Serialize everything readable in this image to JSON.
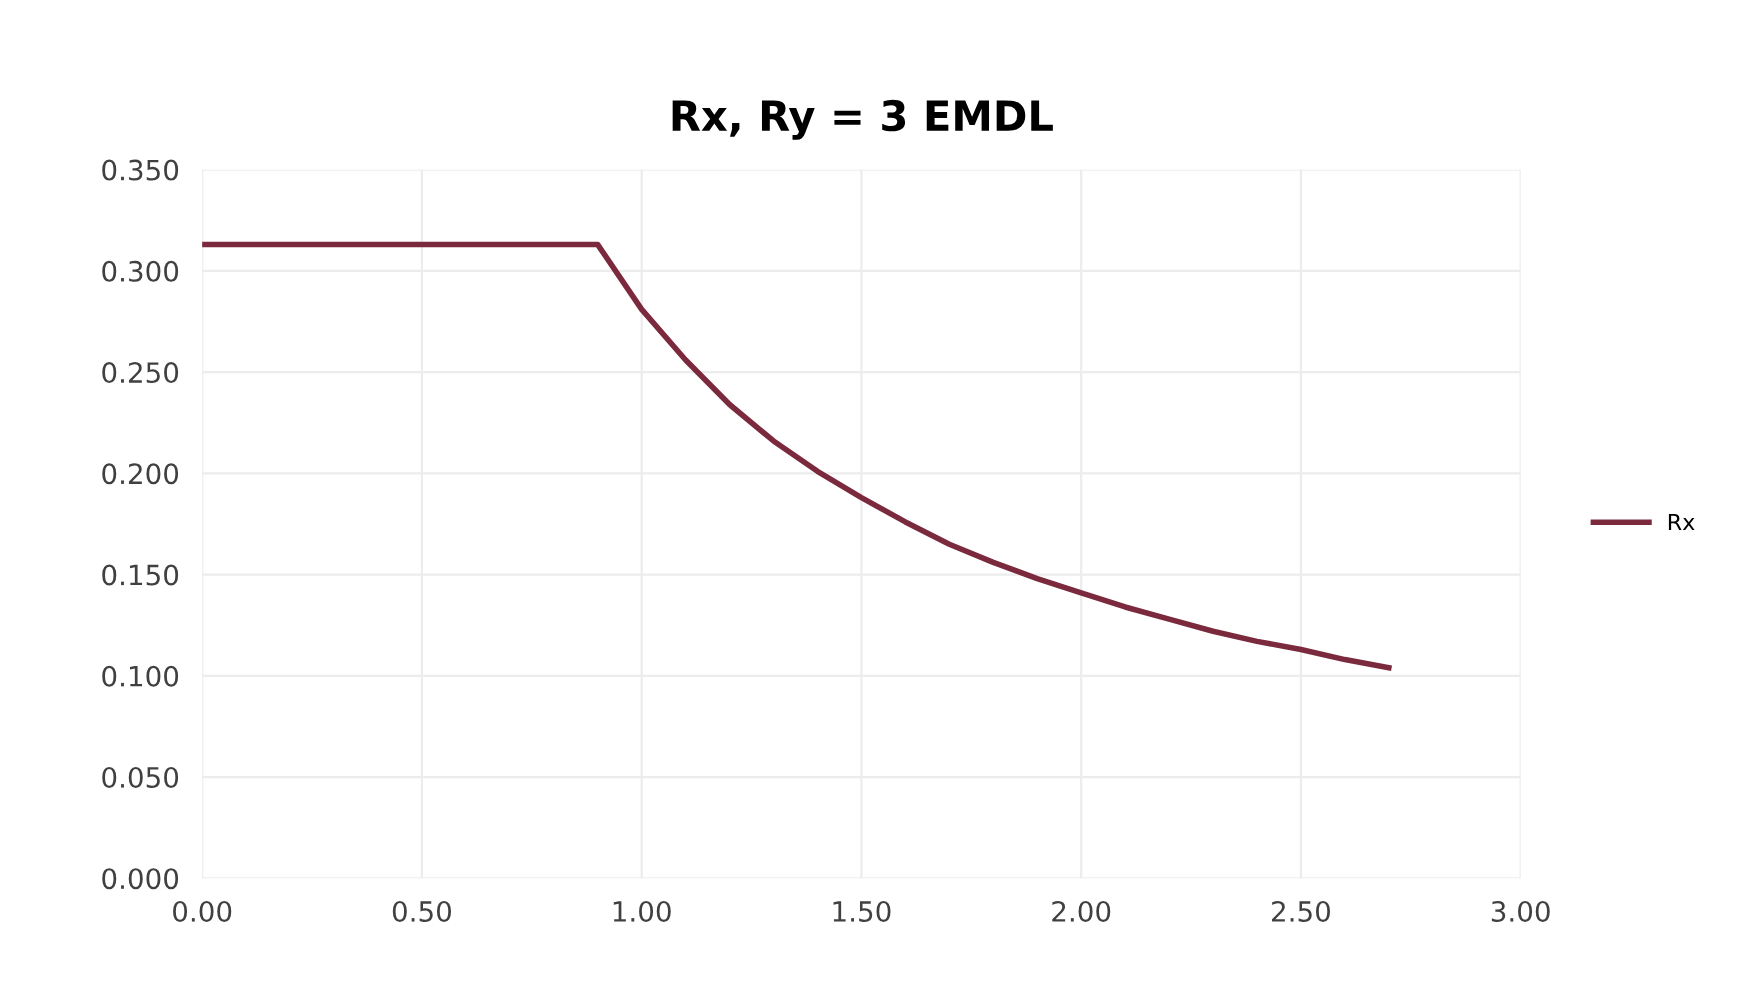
{
  "chart_data": {
    "type": "line",
    "title": "Rx, Ry = 3 EMDL",
    "x": [
      0.0,
      0.9,
      1.0,
      1.1,
      1.2,
      1.3,
      1.4,
      1.5,
      1.6,
      1.7,
      1.8,
      1.9,
      2.0,
      2.1,
      2.2,
      2.3,
      2.4,
      2.5,
      2.6,
      2.7
    ],
    "series": [
      {
        "name": "Rx",
        "color": "#7b2a3e",
        "values": [
          0.313,
          0.313,
          0.281,
          0.256,
          0.234,
          0.216,
          0.201,
          0.188,
          0.176,
          0.165,
          0.156,
          0.148,
          0.141,
          0.134,
          0.128,
          0.122,
          0.117,
          0.113,
          0.108,
          0.104
        ]
      }
    ],
    "xlim": [
      0,
      3
    ],
    "xticks": [
      {
        "value": 0,
        "label": "0.00"
      },
      {
        "value": 0.5,
        "label": "0.50"
      },
      {
        "value": 1,
        "label": "1.00"
      },
      {
        "value": 1.5,
        "label": "1.50"
      },
      {
        "value": 2,
        "label": "2.00"
      },
      {
        "value": 2.5,
        "label": "2.50"
      },
      {
        "value": 3,
        "label": "3.00"
      }
    ],
    "ylim": [
      0,
      0.35
    ],
    "yticks": [
      {
        "value": 0,
        "label": "0.000"
      },
      {
        "value": 0.05,
        "label": "0.050"
      },
      {
        "value": 0.1,
        "label": "0.100"
      },
      {
        "value": 0.15,
        "label": "0.150"
      },
      {
        "value": 0.2,
        "label": "0.200"
      },
      {
        "value": 0.25,
        "label": "0.250"
      },
      {
        "value": 0.3,
        "label": "0.300"
      },
      {
        "value": 0.35,
        "label": "0.350"
      }
    ],
    "grid": true,
    "legend": "right",
    "marker": "none",
    "line_style": "solid"
  }
}
